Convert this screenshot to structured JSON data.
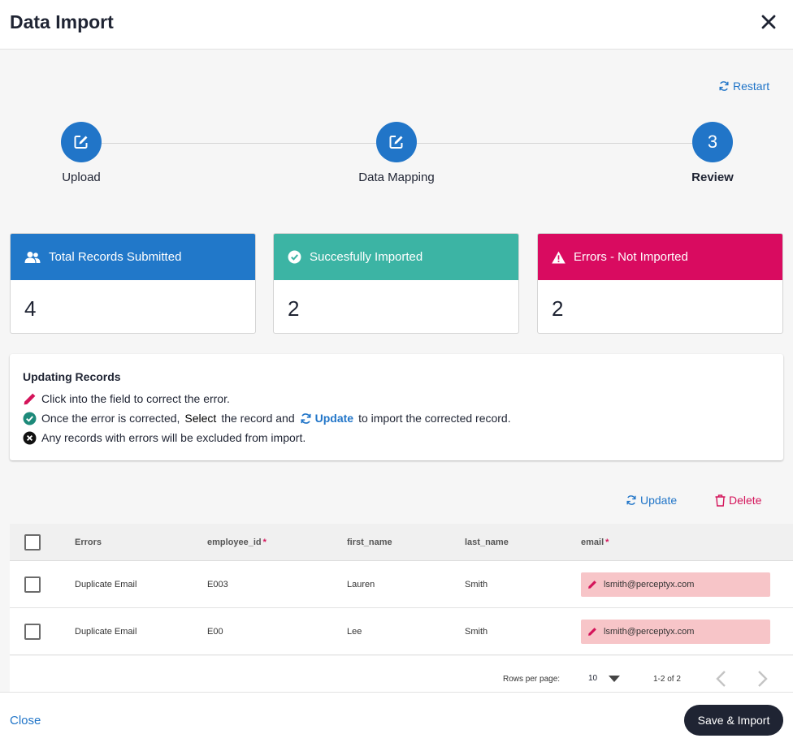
{
  "header": {
    "title": "Data Import"
  },
  "restart_label": "Restart",
  "steps": [
    {
      "label": "Upload",
      "number": ""
    },
    {
      "label": "Data Mapping",
      "number": ""
    },
    {
      "label": "Review",
      "number": "3"
    }
  ],
  "cards": [
    {
      "label": "Total Records Submitted",
      "value": "4",
      "color": "#2178c9"
    },
    {
      "label": "Succesfully Imported",
      "value": "2",
      "color": "#3cb4a4"
    },
    {
      "label": "Errors - Not Imported",
      "value": "2",
      "color": "#d90b60"
    }
  ],
  "info": {
    "title": "Updating Records",
    "line1": "Click into the field to correct the error.",
    "line2_a": "Once the error is corrected,",
    "line2_select": "Select",
    "line2_b": "the record and",
    "line2_update": "Update",
    "line2_c": "to import the corrected record.",
    "line3": "Any records with errors will be excluded from import."
  },
  "actions": {
    "update": "Update",
    "delete": "Delete"
  },
  "table": {
    "columns": {
      "errors": "Errors",
      "employee_id": "employee_id",
      "first_name": "first_name",
      "last_name": "last_name",
      "email": "email"
    },
    "required_mark": "*",
    "rows": [
      {
        "errors": "Duplicate Email",
        "employee_id": "E003",
        "first_name": "Lauren",
        "last_name": "Smith",
        "email": "lsmith@perceptyx.com"
      },
      {
        "errors": "Duplicate Email",
        "employee_id": "E00",
        "first_name": "Lee",
        "last_name": "Smith",
        "email": "lsmith@perceptyx.com"
      }
    ]
  },
  "pagination": {
    "rows_per_page_label": "Rows per page:",
    "rows_per_page": "10",
    "range": "1-2 of 2"
  },
  "footer": {
    "close": "Close",
    "save": "Save & Import"
  }
}
